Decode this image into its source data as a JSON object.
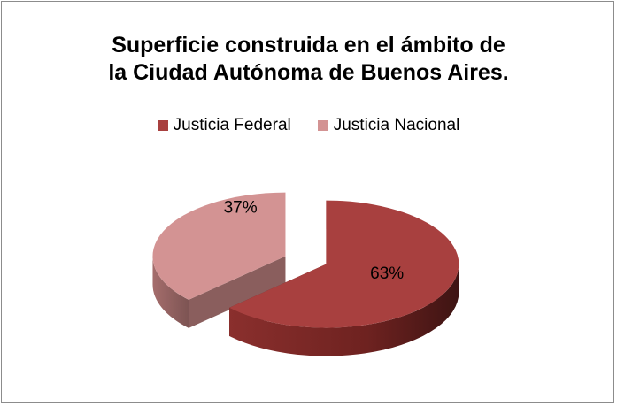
{
  "chart_data": {
    "type": "pie3d",
    "title": [
      "Superficie construida en el ámbito de",
      "la Ciudad Autónoma de Buenos Aires."
    ],
    "categories": [
      "Justicia Federal",
      "Justicia Nacional"
    ],
    "values": [
      63,
      37
    ],
    "value_labels": [
      "63%",
      "37%"
    ],
    "colors": [
      "#a8403f",
      "#d39393"
    ],
    "legend": "top"
  }
}
